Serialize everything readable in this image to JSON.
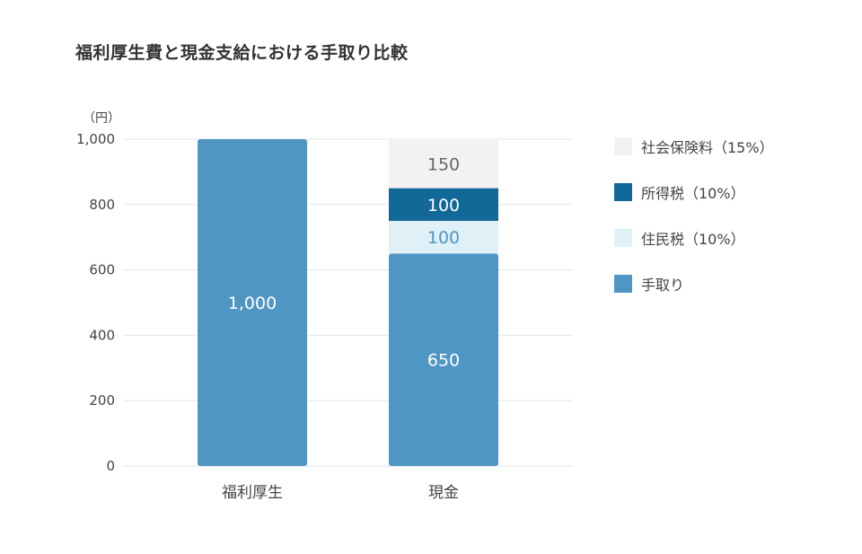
{
  "chart_data": {
    "type": "bar",
    "stacked": true,
    "title": "福利厚生費と現金支給における手取り比較",
    "ylabel": "（円）",
    "ylim": [
      0,
      1000
    ],
    "yticks": [
      "0",
      "200",
      "400",
      "600",
      "800",
      "1,000"
    ],
    "categories": [
      "福利厚生",
      "現金"
    ],
    "grid": true,
    "legend_position": "right",
    "series": [
      {
        "name": "手取り",
        "values": [
          1000,
          650
        ],
        "labels": [
          "1,000",
          "650"
        ],
        "color": "#4f96c4",
        "label_color": "#ffffff"
      },
      {
        "name": "住民税（10%）",
        "values": [
          0,
          100
        ],
        "labels": [
          "",
          "100"
        ],
        "color": "#dff0f7",
        "label_color": "#4f96c4"
      },
      {
        "name": "所得税（10%）",
        "values": [
          0,
          100
        ],
        "labels": [
          "",
          "100"
        ],
        "color": "#126896",
        "label_color": "#ffffff"
      },
      {
        "name": "社会保険料（15%）",
        "values": [
          0,
          150
        ],
        "labels": [
          "",
          "150"
        ],
        "color": "#f2f2f2",
        "label_color": "#666666"
      }
    ],
    "legend_order": [
      3,
      2,
      1,
      0
    ]
  }
}
